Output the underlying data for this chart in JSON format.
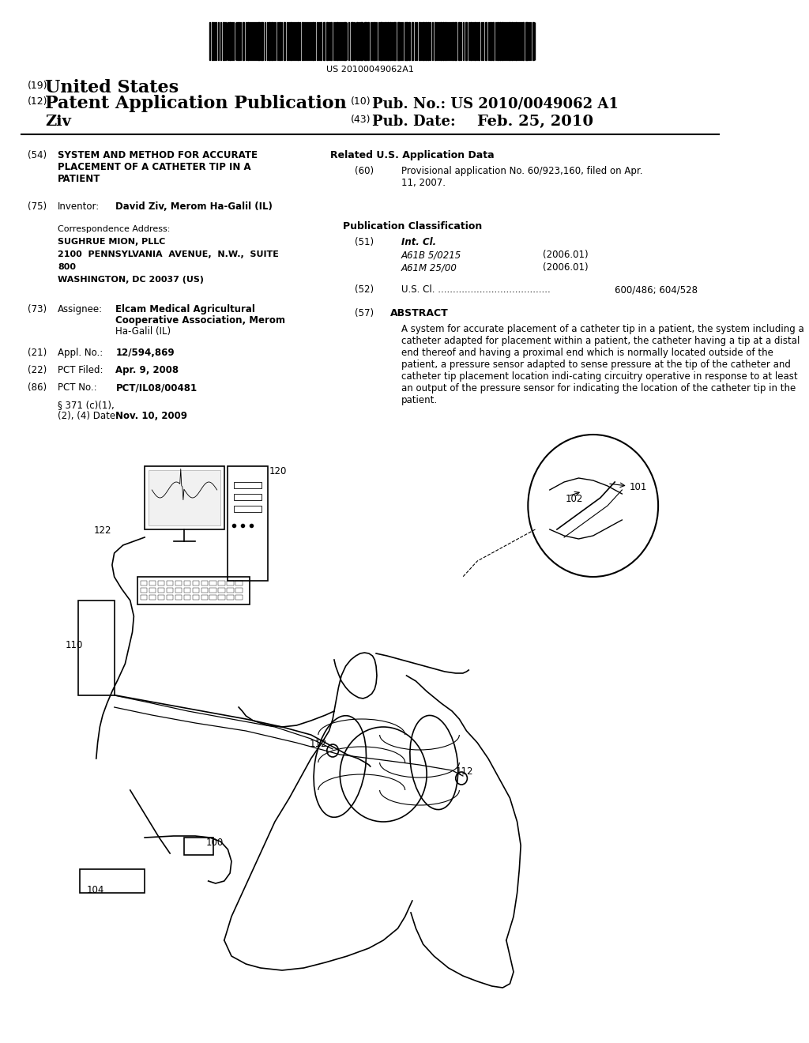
{
  "bg_color": "#f0f0f0",
  "page_bg": "#ffffff",
  "barcode_text": "US 20100049062A1",
  "header_19": "(19)",
  "header_19_text": "United States",
  "header_12": "(12)",
  "header_12_text": "Patent Application Publication",
  "header_10": "(10)",
  "header_10_pub": "Pub. No.:",
  "header_10_num": "US 2010/0049062 A1",
  "inventor_name": "Ziv",
  "header_43": "(43)",
  "header_43_pub": "Pub. Date:",
  "header_43_date": "Feb. 25, 2010",
  "field_54": "(54)",
  "field_54_label": "SYSTEM AND METHOD FOR ACCURATE\nPLACEMENT OF A CATHETER TIP IN A\nPATIENT",
  "field_75": "(75)",
  "field_75_label": "Inventor:",
  "field_75_value": "David Ziv, Merom Ha-Galil (IL)",
  "corr_label": "Correspondence Address:",
  "corr_firm": "SUGHRUE MION, PLLC",
  "corr_addr1": "2100  PENNSYLVANIA  AVENUE,  N.W.,  SUITE",
  "corr_addr2": "800",
  "corr_addr3": "WASHINGTON, DC 20037 (US)",
  "field_73": "(73)",
  "field_73_label": "Assignee:",
  "field_73_value1": "Elcam Medical Agricultural",
  "field_73_value2": "Cooperative Association, Merom",
  "field_73_value3": "Ha-Galil (IL)",
  "field_21": "(21)",
  "field_21_label": "Appl. No.:",
  "field_21_value": "12/594,869",
  "field_22": "(22)",
  "field_22_label": "PCT Filed:",
  "field_22_value": "Apr. 9, 2008",
  "field_86": "(86)",
  "field_86_label": "PCT No.:",
  "field_86_value": "PCT/IL08/00481",
  "field_371": "§ 371 (c)(1),",
  "field_371b": "(2), (4) Date:",
  "field_371_value": "Nov. 10, 2009",
  "related_header": "Related U.S. Application Data",
  "field_60": "(60)",
  "field_60_text": "Provisional application No. 60/923,160, filed on Apr.\n11, 2007.",
  "pub_class_header": "Publication Classification",
  "field_51": "(51)",
  "field_51_label": "Int. Cl.",
  "field_51_a": "A61B 5/0215",
  "field_51_a_date": "(2006.01)",
  "field_51_b": "A61M 25/00",
  "field_51_b_date": "(2006.01)",
  "field_52": "(52)",
  "field_52_label": "U.S. Cl.",
  "field_52_value": "600/486; 604/528",
  "field_57": "(57)",
  "abstract_header": "ABSTRACT",
  "abstract_text": "A system for accurate placement of a catheter tip in a patient, the system including a catheter adapted for placement within a patient, the catheter having a tip at a distal end thereof and having a proximal end which is normally located outside of the patient, a pressure sensor adapted to sense pressure at the tip of the catheter and catheter tip placement location indi-cating circuitry operative in response to at least an output of the pressure sensor for indicating the location of the catheter tip in the patient."
}
